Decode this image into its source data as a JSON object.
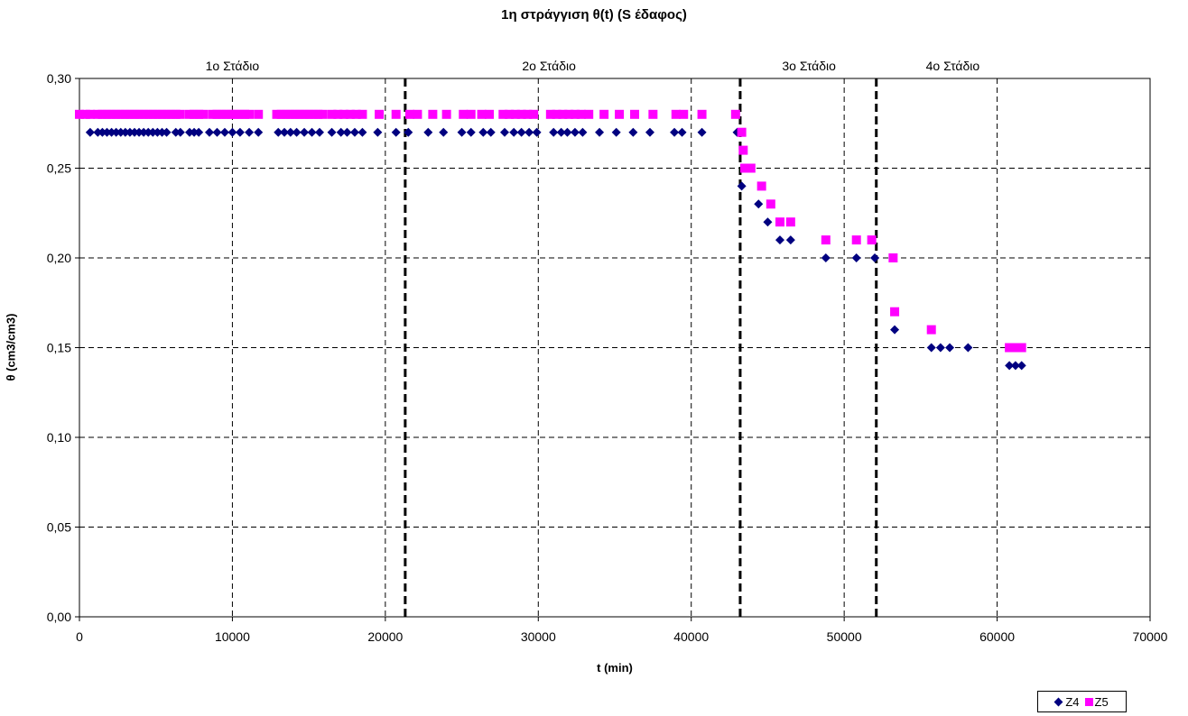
{
  "chart_data": {
    "type": "scatter",
    "title": "1η στράγγιση θ(t) (S έδαφος)",
    "xlabel": "t (min)",
    "ylabel": "θ (cm3/cm3)",
    "xlim": [
      0,
      70000
    ],
    "ylim": [
      0,
      0.3
    ],
    "x_ticks": [
      0,
      10000,
      20000,
      30000,
      40000,
      50000,
      60000,
      70000
    ],
    "x_tick_labels": [
      "0",
      "10000",
      "20000",
      "30000",
      "40000",
      "50000",
      "60000",
      "70000"
    ],
    "y_ticks": [
      0,
      0.05,
      0.1,
      0.15,
      0.2,
      0.25,
      0.3
    ],
    "y_tick_labels": [
      "0,00",
      "0,05",
      "0,10",
      "0,15",
      "0,20",
      "0,25",
      "0,30"
    ],
    "grid": true,
    "legend_position": "bottom-right",
    "stage_dividers": [
      21300,
      43200,
      52100
    ],
    "stage_labels": [
      {
        "label": "1ο Στάδιο",
        "x": 10000
      },
      {
        "label": "2ο Στάδιο",
        "x": 30700
      },
      {
        "label": "3ο Στάδιο",
        "x": 47700
      },
      {
        "label": "4ο Στάδιο",
        "x": 57100
      }
    ],
    "series": [
      {
        "name": "Z4",
        "marker": "diamond",
        "color": "#000080",
        "points": [
          [
            700,
            0.27
          ],
          [
            1200,
            0.27
          ],
          [
            1500,
            0.27
          ],
          [
            1800,
            0.27
          ],
          [
            2100,
            0.27
          ],
          [
            2400,
            0.27
          ],
          [
            2700,
            0.27
          ],
          [
            3000,
            0.27
          ],
          [
            3300,
            0.27
          ],
          [
            3600,
            0.27
          ],
          [
            3900,
            0.27
          ],
          [
            4200,
            0.27
          ],
          [
            4500,
            0.27
          ],
          [
            4800,
            0.27
          ],
          [
            5100,
            0.27
          ],
          [
            5400,
            0.27
          ],
          [
            5700,
            0.27
          ],
          [
            6300,
            0.27
          ],
          [
            6600,
            0.27
          ],
          [
            7200,
            0.27
          ],
          [
            7500,
            0.27
          ],
          [
            7800,
            0.27
          ],
          [
            8500,
            0.27
          ],
          [
            9000,
            0.27
          ],
          [
            9500,
            0.27
          ],
          [
            10000,
            0.27
          ],
          [
            10500,
            0.27
          ],
          [
            11100,
            0.27
          ],
          [
            11700,
            0.27
          ],
          [
            13000,
            0.27
          ],
          [
            13400,
            0.27
          ],
          [
            13800,
            0.27
          ],
          [
            14200,
            0.27
          ],
          [
            14700,
            0.27
          ],
          [
            15200,
            0.27
          ],
          [
            15700,
            0.27
          ],
          [
            16500,
            0.27
          ],
          [
            17100,
            0.27
          ],
          [
            17500,
            0.27
          ],
          [
            18000,
            0.27
          ],
          [
            18500,
            0.27
          ],
          [
            19500,
            0.27
          ],
          [
            20700,
            0.27
          ],
          [
            21500,
            0.27
          ],
          [
            22800,
            0.27
          ],
          [
            23800,
            0.27
          ],
          [
            25000,
            0.27
          ],
          [
            25600,
            0.27
          ],
          [
            26400,
            0.27
          ],
          [
            26900,
            0.27
          ],
          [
            27800,
            0.27
          ],
          [
            28400,
            0.27
          ],
          [
            28900,
            0.27
          ],
          [
            29400,
            0.27
          ],
          [
            29900,
            0.27
          ],
          [
            31000,
            0.27
          ],
          [
            31500,
            0.27
          ],
          [
            31900,
            0.27
          ],
          [
            32400,
            0.27
          ],
          [
            32900,
            0.27
          ],
          [
            34000,
            0.27
          ],
          [
            35100,
            0.27
          ],
          [
            36200,
            0.27
          ],
          [
            37300,
            0.27
          ],
          [
            38900,
            0.27
          ],
          [
            39400,
            0.27
          ],
          [
            40700,
            0.27
          ],
          [
            43000,
            0.27
          ],
          [
            43300,
            0.24
          ],
          [
            44400,
            0.23
          ],
          [
            45000,
            0.22
          ],
          [
            45800,
            0.21
          ],
          [
            46500,
            0.21
          ],
          [
            48800,
            0.2
          ],
          [
            50800,
            0.2
          ],
          [
            52000,
            0.2
          ],
          [
            53300,
            0.16
          ],
          [
            55700,
            0.15
          ],
          [
            56300,
            0.15
          ],
          [
            56900,
            0.15
          ],
          [
            58100,
            0.15
          ],
          [
            60800,
            0.14
          ],
          [
            61200,
            0.14
          ],
          [
            61600,
            0.14
          ]
        ]
      },
      {
        "name": "Z5",
        "marker": "square",
        "color": "#ff00ff",
        "points": [
          [
            0,
            0.28
          ],
          [
            400,
            0.28
          ],
          [
            700,
            0.28
          ],
          [
            1200,
            0.28
          ],
          [
            1500,
            0.28
          ],
          [
            1800,
            0.28
          ],
          [
            2100,
            0.28
          ],
          [
            2400,
            0.28
          ],
          [
            2700,
            0.28
          ],
          [
            3000,
            0.28
          ],
          [
            3300,
            0.28
          ],
          [
            3600,
            0.28
          ],
          [
            3900,
            0.28
          ],
          [
            4200,
            0.28
          ],
          [
            4500,
            0.28
          ],
          [
            4800,
            0.28
          ],
          [
            5100,
            0.28
          ],
          [
            5400,
            0.28
          ],
          [
            5700,
            0.28
          ],
          [
            6000,
            0.28
          ],
          [
            6300,
            0.28
          ],
          [
            6600,
            0.28
          ],
          [
            7200,
            0.28
          ],
          [
            7500,
            0.28
          ],
          [
            7800,
            0.28
          ],
          [
            8100,
            0.28
          ],
          [
            8700,
            0.28
          ],
          [
            9000,
            0.28
          ],
          [
            9300,
            0.28
          ],
          [
            9600,
            0.28
          ],
          [
            9900,
            0.28
          ],
          [
            10200,
            0.28
          ],
          [
            10500,
            0.28
          ],
          [
            10800,
            0.28
          ],
          [
            11100,
            0.28
          ],
          [
            11700,
            0.28
          ],
          [
            12900,
            0.28
          ],
          [
            13200,
            0.28
          ],
          [
            13500,
            0.28
          ],
          [
            13800,
            0.28
          ],
          [
            14100,
            0.28
          ],
          [
            14400,
            0.28
          ],
          [
            14700,
            0.28
          ],
          [
            15000,
            0.28
          ],
          [
            15300,
            0.28
          ],
          [
            15600,
            0.28
          ],
          [
            15900,
            0.28
          ],
          [
            16500,
            0.28
          ],
          [
            16900,
            0.28
          ],
          [
            17300,
            0.28
          ],
          [
            17700,
            0.28
          ],
          [
            18100,
            0.28
          ],
          [
            18500,
            0.28
          ],
          [
            19600,
            0.28
          ],
          [
            20700,
            0.28
          ],
          [
            21600,
            0.28
          ],
          [
            22100,
            0.28
          ],
          [
            23100,
            0.28
          ],
          [
            24000,
            0.28
          ],
          [
            25100,
            0.28
          ],
          [
            25600,
            0.28
          ],
          [
            26300,
            0.28
          ],
          [
            26800,
            0.28
          ],
          [
            27700,
            0.28
          ],
          [
            28100,
            0.28
          ],
          [
            28500,
            0.28
          ],
          [
            28900,
            0.28
          ],
          [
            29300,
            0.28
          ],
          [
            29700,
            0.28
          ],
          [
            30800,
            0.28
          ],
          [
            31200,
            0.28
          ],
          [
            31600,
            0.28
          ],
          [
            32000,
            0.28
          ],
          [
            32400,
            0.28
          ],
          [
            32800,
            0.28
          ],
          [
            33300,
            0.28
          ],
          [
            34300,
            0.28
          ],
          [
            35300,
            0.28
          ],
          [
            36300,
            0.28
          ],
          [
            37500,
            0.28
          ],
          [
            39000,
            0.28
          ],
          [
            39500,
            0.28
          ],
          [
            40700,
            0.28
          ],
          [
            42900,
            0.28
          ],
          [
            43300,
            0.27
          ],
          [
            43400,
            0.26
          ],
          [
            43500,
            0.25
          ],
          [
            43900,
            0.25
          ],
          [
            44600,
            0.24
          ],
          [
            45200,
            0.23
          ],
          [
            45800,
            0.22
          ],
          [
            46500,
            0.22
          ],
          [
            48800,
            0.21
          ],
          [
            50800,
            0.21
          ],
          [
            51800,
            0.21
          ],
          [
            53200,
            0.2
          ],
          [
            53300,
            0.17
          ],
          [
            55700,
            0.16
          ],
          [
            60800,
            0.15
          ],
          [
            61200,
            0.15
          ],
          [
            61600,
            0.15
          ]
        ]
      }
    ]
  }
}
